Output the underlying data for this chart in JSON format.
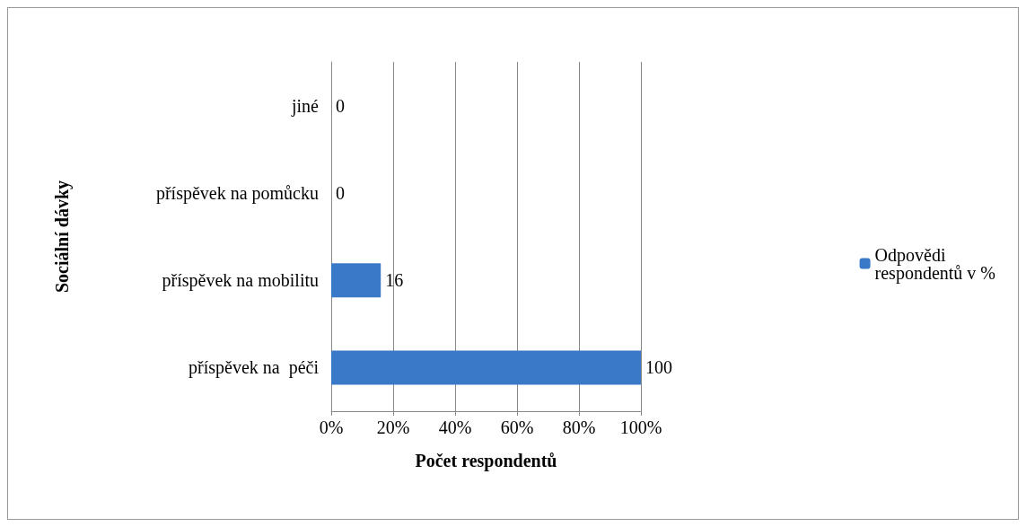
{
  "chart_data": {
    "type": "bar",
    "orientation": "horizontal",
    "xlabel": "Počet respondentů",
    "ylabel": "Sociální dávky",
    "categories": [
      "jiné",
      "příspěvek na pomůcku",
      "příspěvek na mobilitu",
      "příspěvek na  péči"
    ],
    "series": [
      {
        "name": "Odpovědi respondentů v %",
        "color": "#3a78c8",
        "values": [
          0,
          0,
          16,
          100
        ]
      }
    ],
    "xlim": [
      0,
      100
    ],
    "xticks": [
      {
        "value": 0,
        "label": "0%"
      },
      {
        "value": 20,
        "label": "20%"
      },
      {
        "value": 40,
        "label": "40%"
      },
      {
        "value": 60,
        "label": "60%"
      },
      {
        "value": 80,
        "label": "80%"
      },
      {
        "value": 100,
        "label": "100%"
      }
    ],
    "grid": "x",
    "legend": "right",
    "data_labels": true
  }
}
